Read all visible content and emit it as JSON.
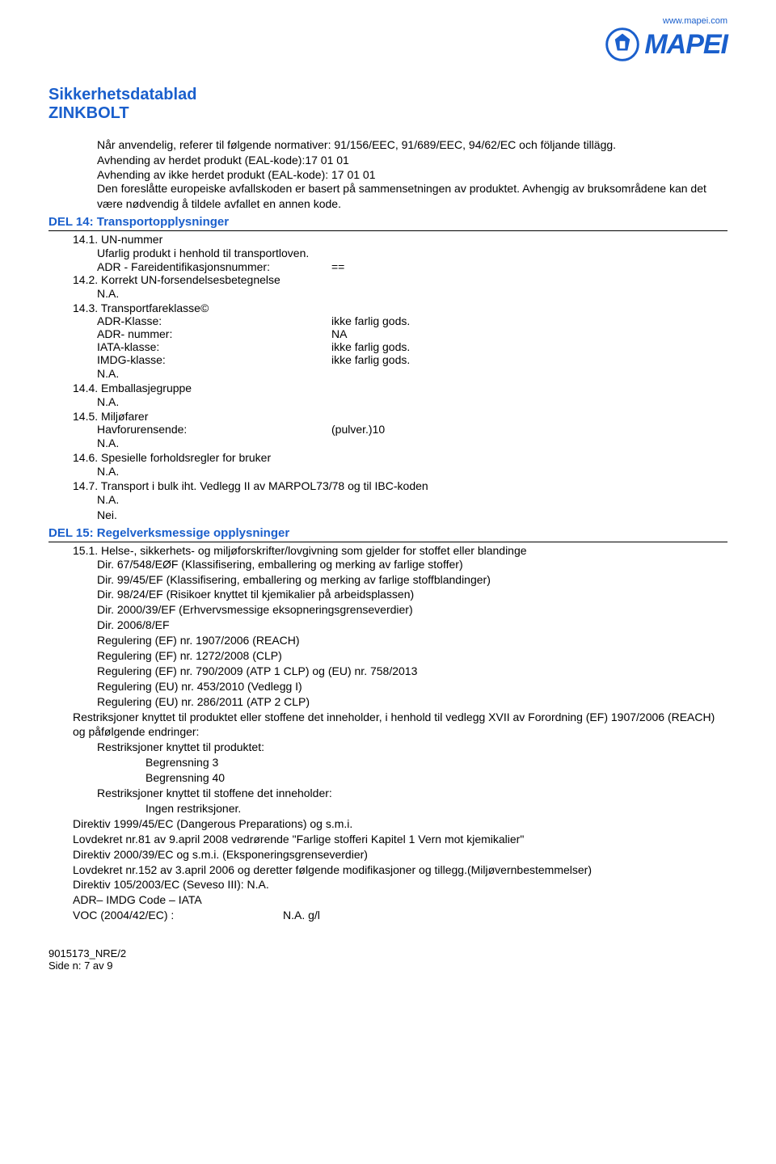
{
  "header": {
    "website": "www.mapei.com",
    "logo_text": "MAPEI"
  },
  "doc": {
    "title": "Sikkerhetsdatablad",
    "product": "ZINKBOLT"
  },
  "intro": {
    "line1": "Når anvendelig, referer til følgende normativer: 91/156/EEC, 91/689/EEC, 94/62/EC och följande tillägg.",
    "line2a": "Avhending av herdet produkt (EAL-kode):17 01 01",
    "line2b_key": "Avhending av ikke herdet produkt (EAL-kode):",
    "line2b_val": "17 01 01",
    "line3": "Den foreslåtte europeiske avfallskoden er basert på sammensetningen av produktet. Avhengig av bruksområdene kan det være nødvendig å tildele avfallet en annen kode."
  },
  "sec14": {
    "heading": "DEL 14: Transportopplysninger",
    "s1_num": "14.1. UN-nummer",
    "s1_line": "Ufarlig produkt i henhold til transportloven.",
    "s1_adr_key": "ADR - Fareidentifikasjonsnummer:",
    "s1_adr_val": "==",
    "s2_num": "14.2. Korrekt UN-forsendelsesbetegnelse",
    "na": "N.A.",
    "s3_num": "14.3. Transportfareklasse©",
    "s3_rows": [
      {
        "k": "ADR-Klasse:",
        "v": "ikke farlig gods."
      },
      {
        "k": "ADR- nummer:",
        "v": "NA"
      },
      {
        "k": "IATA-klasse:",
        "v": "ikke farlig gods."
      },
      {
        "k": "IMDG-klasse:",
        "v": "ikke farlig gods."
      }
    ],
    "s4_num": "14.4. Emballasjegruppe",
    "s5_num": "14.5. Miljøfarer",
    "s5_key": "Havforurensende:",
    "s5_val": "(pulver.)10",
    "s6_num": "14.6. Spesielle forholdsregler for bruker",
    "s7_num": "14.7. Transport i bulk iht. Vedlegg II av MARPOL73/78 og til IBC-koden",
    "nei": "Nei."
  },
  "sec15": {
    "heading": "DEL 15: Regelverksmessige opplysninger",
    "s1_num": "15.1. Helse-, sikkerhets- og miljøforskrifter/lovgivning som gjelder for stoffet eller blandinge",
    "dirs": [
      "Dir. 67/548/EØF (Klassifisering, emballering og merking av farlige stoffer)",
      "Dir. 99/45/EF (Klassifisering, emballering og merking av farlige stoffblandinger)",
      "Dir. 98/24/EF (Risikoer knyttet til kjemikalier på arbeidsplassen)",
      "Dir. 2000/39/EF (Erhvervsmessige eksopneringsgrenseverdier)",
      "Dir. 2006/8/EF",
      "Regulering (EF) nr. 1907/2006 (REACH)",
      "Regulering (EF) nr. 1272/2008 (CLP)",
      "Regulering (EF) nr. 790/2009 (ATP 1 CLP) og (EU) nr. 758/2013",
      "Regulering (EU) nr. 453/2010 (Vedlegg I)",
      "Regulering (EU) nr. 286/2011 (ATP 2 CLP)"
    ],
    "restr_intro": "Restriksjoner knyttet til produktet eller stoffene det inneholder, i henhold til vedlegg XVII av Forordning (EF) 1907/2006 (REACH) og påfølgende endringer:",
    "restr_prod": "Restriksjoner knyttet til produktet:",
    "begr3": "Begrensning 3",
    "begr40": "Begrensning 40",
    "restr_stoff": "Restriksjoner knyttet til stoffene det inneholder:",
    "ingen": "Ingen restriksjoner.",
    "tail": [
      "Direktiv 1999/45/EC (Dangerous Preparations) og  s.m.i.",
      "Lovdekret nr.81  av 9.april 2008 vedrørende \"Farlige stofferi Kapitel 1 Vern mot kjemikalier\"",
      "Direktiv 2000/39/EC og  s.m.i. (Eksponeringsgrenseverdier)",
      "Lovdekret nr.152  av 3.april 2006 og deretter følgende  modifikasjoner  og tillegg.(Miljøvernbestemmelser)",
      "Direktiv 105/2003/EC (Seveso III): N.A.",
      "ADR– IMDG Code – IATA"
    ],
    "voc_key": "VOC (2004/42/EC) :",
    "voc_val": "N.A. g/l"
  },
  "footer": {
    "code": "9015173_NRE/2",
    "page": "Side n: 7  av 9"
  },
  "colors": {
    "brand_blue": "#1a5fcc",
    "text": "#000000",
    "bg": "#ffffff"
  }
}
